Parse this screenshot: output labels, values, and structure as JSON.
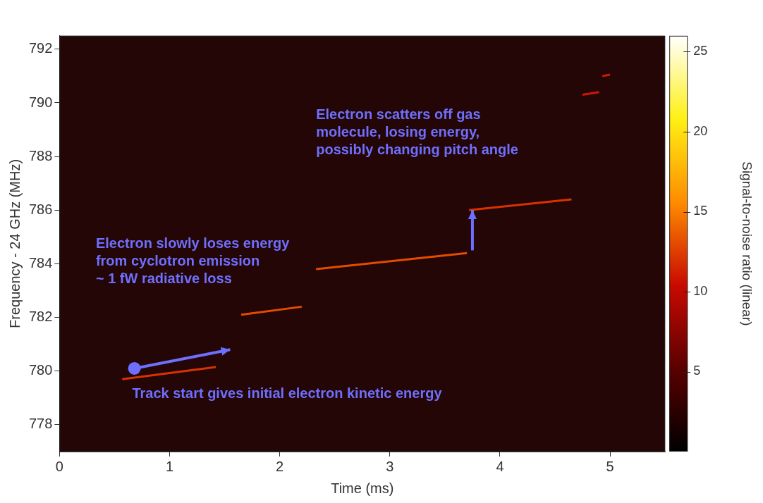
{
  "chart_data": {
    "type": "spectrogram",
    "x_label": "Time (ms)",
    "y_label": "Frequency - 24 GHz (MHz)",
    "xlim": [
      0,
      5.5
    ],
    "xticks": [
      0,
      1,
      2,
      3,
      4,
      5
    ],
    "ylim": [
      777,
      792.5
    ],
    "yticks": [
      778,
      780,
      782,
      784,
      786,
      788,
      790,
      792
    ],
    "grid": false,
    "colorbar": {
      "label": "Signal-to-noise ratio (linear)",
      "range": [
        0,
        26
      ],
      "ticks": [
        5,
        10,
        15,
        20,
        25
      ]
    },
    "tracks": [
      {
        "x": [
          0.57,
          1.42
        ],
        "y": [
          779.7,
          780.15
        ],
        "snr": 12
      },
      {
        "x": [
          1.65,
          2.2
        ],
        "y": [
          782.1,
          782.4
        ],
        "snr": 13
      },
      {
        "x": [
          2.33,
          3.7
        ],
        "y": [
          783.8,
          784.4
        ],
        "snr": 13
      },
      {
        "x": [
          3.72,
          4.65
        ],
        "y": [
          786.0,
          786.4
        ],
        "snr": 12
      },
      {
        "x": [
          4.75,
          4.9
        ],
        "y": [
          790.3,
          790.4
        ],
        "snr": 11
      },
      {
        "x": [
          4.93,
          5.0
        ],
        "y": [
          791.0,
          791.05
        ],
        "snr": 11
      }
    ],
    "annotations": [
      {
        "text": "Electron scatters off gas\nmolecule, losing energy,\npossibly changing pitch angle",
        "x": 2.33,
        "y": 789.8,
        "arrow": {
          "from": [
            3.75,
            784.5
          ],
          "to": [
            3.75,
            786.0
          ]
        }
      },
      {
        "text": "Electron slowly loses energy\nfrom cyclotron emission\n~ 1 fW radiative loss",
        "x": 0.33,
        "y": 785.0
      },
      {
        "text": "Track start gives initial electron kinetic energy",
        "x": 0.66,
        "y": 779.4,
        "arrow": {
          "from": [
            0.68,
            780.1
          ],
          "to": [
            1.55,
            780.8
          ],
          "marker": "circle"
        }
      }
    ]
  }
}
